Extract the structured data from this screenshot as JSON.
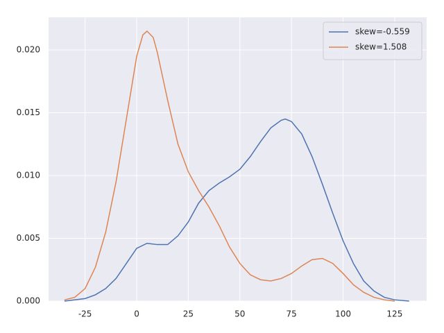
{
  "chart_data": {
    "type": "line",
    "series": [
      {
        "name": "skew=-0.559",
        "color": "#4c72b0",
        "x": [
          -35,
          -25,
          -20,
          -15,
          -10,
          -5,
          0,
          5,
          10,
          15,
          20,
          25,
          30,
          35,
          40,
          45,
          50,
          55,
          60,
          65,
          70,
          72,
          75,
          80,
          85,
          90,
          95,
          100,
          105,
          110,
          115,
          120,
          125,
          132
        ],
        "values": [
          0.0,
          0.0002,
          0.0005,
          0.001,
          0.0018,
          0.003,
          0.0042,
          0.0046,
          0.0045,
          0.0045,
          0.0052,
          0.0063,
          0.0078,
          0.0088,
          0.0094,
          0.0099,
          0.0105,
          0.0115,
          0.0127,
          0.0138,
          0.0144,
          0.0145,
          0.0143,
          0.0133,
          0.0115,
          0.0093,
          0.007,
          0.0048,
          0.003,
          0.0016,
          0.0008,
          0.0003,
          0.0001,
          0.0
        ]
      },
      {
        "name": "skew=1.508",
        "color": "#dd8452",
        "x": [
          -35,
          -30,
          -25,
          -20,
          -15,
          -10,
          -5,
          0,
          3,
          5,
          8,
          10,
          15,
          20,
          25,
          30,
          35,
          40,
          45,
          50,
          55,
          60,
          65,
          70,
          75,
          80,
          85,
          90,
          95,
          100,
          105,
          110,
          115,
          120,
          125
        ],
        "values": [
          0.0001,
          0.0003,
          0.001,
          0.0027,
          0.0055,
          0.0095,
          0.0145,
          0.0195,
          0.0212,
          0.0215,
          0.021,
          0.0198,
          0.016,
          0.0125,
          0.0103,
          0.0088,
          0.0075,
          0.006,
          0.0043,
          0.003,
          0.0021,
          0.0017,
          0.0016,
          0.0018,
          0.0022,
          0.0028,
          0.0033,
          0.0034,
          0.003,
          0.0022,
          0.0013,
          0.0007,
          0.0003,
          0.0001,
          0.0
        ]
      }
    ],
    "xlim": [
      -42.7,
      140.5
    ],
    "ylim": [
      0,
      0.0226
    ],
    "xticks": [
      -25,
      0,
      25,
      50,
      75,
      100,
      125
    ],
    "yticks": [
      {
        "value": 0,
        "label": "0.000"
      },
      {
        "value": 0.005,
        "label": "0.005"
      },
      {
        "value": 0.01,
        "label": "0.010"
      },
      {
        "value": 0.015,
        "label": "0.015"
      },
      {
        "value": 0.02,
        "label": "0.020"
      }
    ],
    "grid": true,
    "legend": "upper right",
    "background": "#eaeaf2"
  }
}
